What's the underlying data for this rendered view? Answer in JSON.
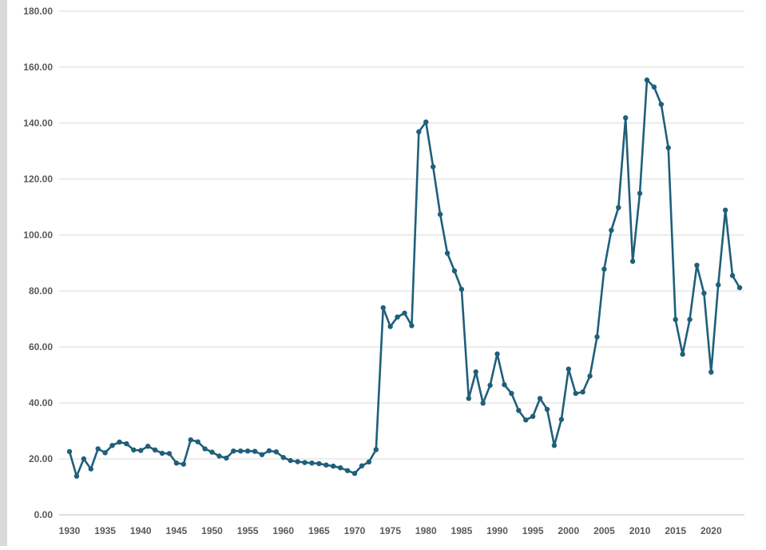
{
  "chart_data": {
    "type": "line",
    "title": "",
    "xlabel": "",
    "ylabel": "",
    "xlim": [
      1930,
      2024
    ],
    "ylim": [
      0,
      180
    ],
    "grid": true,
    "legend": "none",
    "y_ticks": [
      "0.00",
      "20.00",
      "40.00",
      "60.00",
      "80.00",
      "100.00",
      "120.00",
      "140.00",
      "160.00",
      "180.00"
    ],
    "x_ticks": [
      "1930",
      "1935",
      "1940",
      "1945",
      "1950",
      "1955",
      "1960",
      "1965",
      "1970",
      "1975",
      "1980",
      "1985",
      "1990",
      "1995",
      "2000",
      "2005",
      "2010",
      "2015",
      "2020"
    ],
    "series": [
      {
        "color": "#1f5f7a",
        "x": [
          1930,
          1931,
          1932,
          1933,
          1934,
          1935,
          1936,
          1937,
          1938,
          1939,
          1940,
          1941,
          1942,
          1943,
          1944,
          1945,
          1946,
          1947,
          1948,
          1949,
          1950,
          1951,
          1952,
          1953,
          1954,
          1955,
          1956,
          1957,
          1958,
          1959,
          1960,
          1961,
          1962,
          1963,
          1964,
          1965,
          1966,
          1967,
          1968,
          1969,
          1970,
          1971,
          1972,
          1973,
          1974,
          1975,
          1976,
          1977,
          1978,
          1979,
          1980,
          1981,
          1982,
          1983,
          1984,
          1985,
          1986,
          1987,
          1988,
          1989,
          1990,
          1991,
          1992,
          1993,
          1994,
          1995,
          1996,
          1997,
          1998,
          1999,
          2000,
          2001,
          2002,
          2003,
          2004,
          2005,
          2006,
          2007,
          2008,
          2009,
          2010,
          2011,
          2012,
          2013,
          2014,
          2015,
          2016,
          2017,
          2018,
          2019,
          2020,
          2021,
          2022,
          2023,
          2024
        ],
        "values": [
          22.6,
          13.8,
          20.0,
          16.4,
          23.6,
          22.2,
          24.8,
          26.0,
          25.4,
          23.2,
          23.0,
          24.5,
          23.2,
          22.0,
          21.9,
          18.5,
          18.1,
          26.8,
          26.1,
          23.6,
          22.4,
          21.0,
          20.3,
          22.8,
          22.8,
          22.8,
          22.7,
          21.5,
          22.9,
          22.5,
          20.5,
          19.4,
          19.0,
          18.7,
          18.5,
          18.3,
          17.8,
          17.4,
          16.8,
          15.8,
          14.8,
          17.5,
          18.9,
          23.3,
          74.0,
          67.3,
          70.7,
          72.1,
          67.6,
          136.9,
          140.4,
          124.4,
          107.4,
          93.5,
          87.2,
          80.6,
          41.6,
          51.1,
          39.9,
          46.3,
          57.5,
          46.5,
          43.4,
          37.3,
          33.9,
          35.2,
          41.6,
          37.7,
          24.8,
          34.1,
          52.1,
          43.4,
          43.9,
          49.6,
          63.6,
          87.8,
          101.7,
          109.8,
          141.9,
          90.6,
          114.9,
          155.4,
          152.9,
          146.7,
          131.2,
          69.8,
          57.4,
          69.8,
          89.2,
          79.2,
          51.0,
          82.2,
          108.9,
          85.5,
          81.2
        ]
      }
    ]
  }
}
